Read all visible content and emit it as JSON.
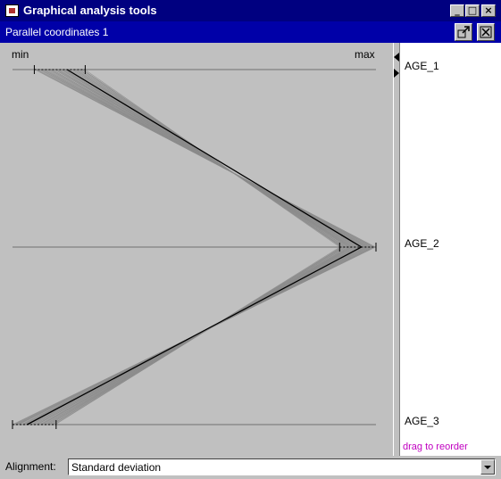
{
  "window": {
    "title": "Graphical analysis tools",
    "minimize_glyph": "_",
    "maximize_glyph": "□",
    "close_glyph": "×"
  },
  "panel": {
    "title": "Parallel coordinates 1"
  },
  "plot": {
    "min_label": "min",
    "max_label": "max"
  },
  "axes": [
    {
      "name": "AGE_1",
      "mean": 0.15,
      "sd_low": 0.06,
      "sd_high": 0.2
    },
    {
      "name": "AGE_2",
      "mean": 0.96,
      "sd_low": 0.9,
      "sd_high": 1.0
    },
    {
      "name": "AGE_3",
      "mean": 0.04,
      "sd_low": 0.0,
      "sd_high": 0.12
    }
  ],
  "reorder_hint": "drag to reorder",
  "footer": {
    "alignment_label": "Alignment:",
    "alignment_value": "Standard deviation"
  },
  "colors": {
    "title_bar": "#000080",
    "panel_bar": "#0000a8",
    "plot_bg": "#c0c0c0",
    "polyline": "#8c8c8c",
    "mean_line": "#000000",
    "hint": "#c000c0"
  }
}
